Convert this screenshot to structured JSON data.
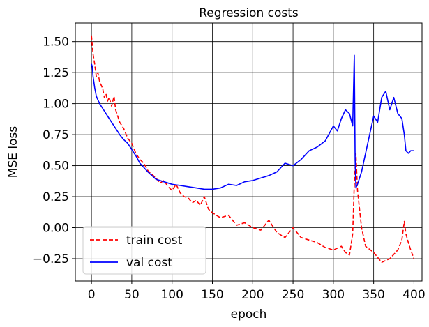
{
  "chart_data": {
    "type": "line",
    "title": "Regression costs",
    "xlabel": "epoch",
    "ylabel": "MSE loss",
    "xlim": [
      -20,
      410
    ],
    "ylim": [
      -0.43,
      1.65
    ],
    "xticks": [
      0,
      50,
      100,
      150,
      200,
      250,
      300,
      350,
      400
    ],
    "yticks": [
      -0.25,
      0.0,
      0.25,
      0.5,
      0.75,
      1.0,
      1.25,
      1.5
    ],
    "ytick_labels": [
      "−0.25",
      "0.00",
      "0.25",
      "0.50",
      "0.75",
      "1.00",
      "1.25",
      "1.50"
    ],
    "grid": true,
    "legend_position": "lower-left",
    "series": [
      {
        "name": "train cost",
        "color": "#ff0000",
        "dash": "dashed",
        "x": [
          0,
          2,
          4,
          6,
          8,
          10,
          12,
          14,
          16,
          18,
          20,
          22,
          25,
          28,
          30,
          35,
          40,
          45,
          50,
          55,
          60,
          65,
          70,
          75,
          80,
          85,
          90,
          95,
          100,
          105,
          110,
          115,
          120,
          125,
          130,
          135,
          140,
          145,
          150,
          160,
          170,
          180,
          190,
          200,
          210,
          220,
          230,
          240,
          250,
          260,
          270,
          280,
          290,
          300,
          310,
          315,
          320,
          324,
          326,
          328,
          330,
          335,
          340,
          350,
          360,
          370,
          380,
          385,
          388,
          390,
          393,
          396,
          400
        ],
        "y": [
          1.55,
          1.4,
          1.32,
          1.22,
          1.25,
          1.18,
          1.15,
          1.12,
          1.05,
          1.08,
          1.02,
          1.05,
          0.98,
          1.06,
          0.95,
          0.85,
          0.8,
          0.72,
          0.68,
          0.6,
          0.55,
          0.52,
          0.46,
          0.43,
          0.4,
          0.36,
          0.38,
          0.33,
          0.3,
          0.35,
          0.28,
          0.25,
          0.24,
          0.2,
          0.22,
          0.18,
          0.25,
          0.15,
          0.12,
          0.08,
          0.1,
          0.02,
          0.04,
          0.0,
          -0.02,
          0.06,
          -0.04,
          -0.08,
          0.0,
          -0.08,
          -0.1,
          -0.12,
          -0.16,
          -0.18,
          -0.15,
          -0.2,
          -0.22,
          -0.05,
          0.35,
          0.6,
          0.3,
          0.0,
          -0.15,
          -0.2,
          -0.28,
          -0.25,
          -0.18,
          -0.1,
          0.05,
          -0.05,
          -0.12,
          -0.18,
          -0.25
        ]
      },
      {
        "name": "val cost",
        "color": "#0000ff",
        "dash": "solid",
        "x": [
          0,
          1,
          2,
          4,
          6,
          10,
          15,
          20,
          25,
          30,
          35,
          40,
          45,
          50,
          55,
          60,
          70,
          80,
          90,
          100,
          110,
          120,
          130,
          140,
          150,
          160,
          170,
          180,
          190,
          200,
          210,
          220,
          230,
          240,
          250,
          260,
          270,
          280,
          290,
          300,
          305,
          310,
          315,
          320,
          324,
          326,
          327,
          328,
          330,
          335,
          340,
          345,
          350,
          355,
          360,
          365,
          370,
          375,
          380,
          385,
          388,
          390,
          393,
          396,
          400
        ],
        "y": [
          1.32,
          1.3,
          1.22,
          1.13,
          1.06,
          1.0,
          0.95,
          0.9,
          0.85,
          0.8,
          0.75,
          0.71,
          0.68,
          0.63,
          0.58,
          0.52,
          0.45,
          0.39,
          0.37,
          0.35,
          0.34,
          0.33,
          0.32,
          0.31,
          0.31,
          0.32,
          0.35,
          0.34,
          0.37,
          0.38,
          0.4,
          0.42,
          0.45,
          0.52,
          0.5,
          0.55,
          0.62,
          0.65,
          0.7,
          0.82,
          0.78,
          0.88,
          0.95,
          0.92,
          0.82,
          1.39,
          0.55,
          0.32,
          0.35,
          0.45,
          0.6,
          0.75,
          0.9,
          0.85,
          1.05,
          1.1,
          0.95,
          1.05,
          0.92,
          0.88,
          0.75,
          0.62,
          0.6,
          0.62,
          0.62
        ]
      }
    ]
  }
}
